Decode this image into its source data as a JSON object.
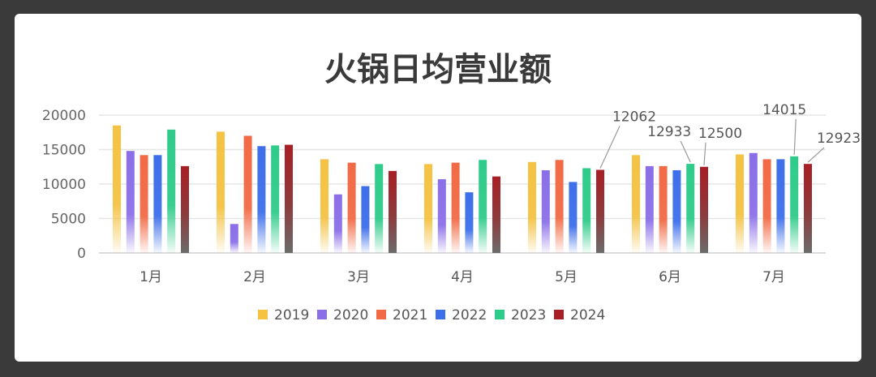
{
  "chart_data": {
    "type": "bar",
    "title": "火锅日均营业额",
    "categories": [
      "1月",
      "2月",
      "3月",
      "4月",
      "5月",
      "6月",
      "7月"
    ],
    "ylim": [
      0,
      20000
    ],
    "yticks": [
      "0",
      "5000",
      "10000",
      "15000",
      "20000"
    ],
    "grid": true,
    "legend_position": "bottom",
    "series": [
      {
        "name": "2019",
        "color": "#F5C242",
        "values": [
          18500,
          17600,
          13600,
          12900,
          13200,
          14200,
          14300
        ]
      },
      {
        "name": "2020",
        "color": "#8A6FE8",
        "values": [
          14800,
          4200,
          8500,
          10700,
          12000,
          12600,
          14500
        ]
      },
      {
        "name": "2021",
        "color": "#F26A45",
        "values": [
          14200,
          17000,
          13100,
          13100,
          13500,
          12600,
          13600
        ]
      },
      {
        "name": "2022",
        "color": "#3D6FEA",
        "values": [
          14200,
          15500,
          9700,
          8800,
          10300,
          12000,
          13600
        ]
      },
      {
        "name": "2023",
        "color": "#2FCB8A",
        "values": [
          17900,
          15600,
          12900,
          13500,
          12300,
          12933,
          14015
        ]
      },
      {
        "name": "2024",
        "color": "#A81E24",
        "values": [
          12600,
          15700,
          11900,
          11100,
          12062,
          12500,
          12923
        ]
      }
    ],
    "annotations": [
      {
        "text": "12062",
        "series": 5,
        "category": 4
      },
      {
        "text": "12933",
        "series": 4,
        "category": 5
      },
      {
        "text": "12500",
        "series": 5,
        "category": 5
      },
      {
        "text": "14015",
        "series": 4,
        "category": 6
      },
      {
        "text": "12923",
        "series": 5,
        "category": 6
      }
    ]
  }
}
